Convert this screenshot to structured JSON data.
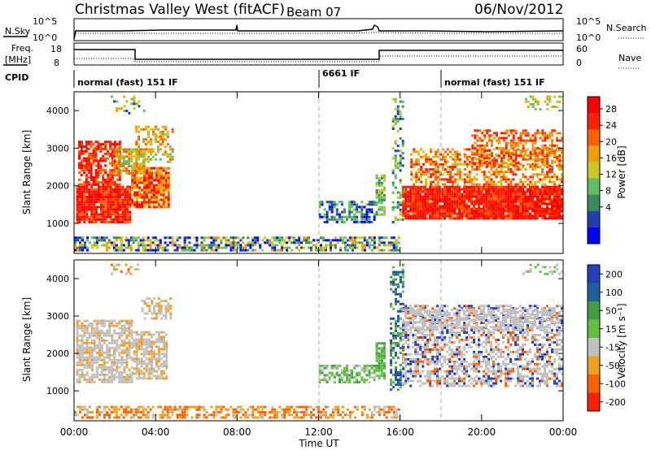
{
  "header": {
    "station": "Christmas Valley West (fitACF)",
    "beam": "Beam 07",
    "date": "06/Nov/2012"
  },
  "top_panels": {
    "nsky_label": "N.Sky",
    "nsearch_label": "N.Search",
    "noise_ticks": [
      "10^5",
      "10^0"
    ],
    "freq_label": "Freq.",
    "freq_unit": "[MHz]",
    "freq_ticks": [
      "18",
      "8"
    ],
    "nave_label": "Nave",
    "nave_ticks": [
      "60",
      "0"
    ],
    "cpid_label": "CPID",
    "cpid_segments": [
      "normal (fast) 151 IF",
      "6661 IF",
      "normal (fast) 151 IF"
    ]
  },
  "colors": {
    "power": [
      "#0000ff",
      "#2040b0",
      "#3a8a60",
      "#60c060",
      "#c8c820",
      "#f0a000",
      "#ff6000",
      "#ff2000",
      "#ff0000"
    ],
    "velocity": [
      "#2040c0",
      "#2060a0",
      "#40a040",
      "#60c040",
      "#c0c0c0",
      "#f0a020",
      "#ff6000",
      "#ff2000"
    ]
  },
  "chart_data": [
    {
      "type": "heatmap",
      "title": "",
      "xlabel": "Time UT",
      "ylabel": "Slant Range [km]",
      "x_ticks": [
        "00:00",
        "04:00",
        "08:00",
        "12:00",
        "16:00",
        "20:00",
        "00:00"
      ],
      "y_ticks": [
        "1000",
        "2000",
        "3000",
        "4000"
      ],
      "colorbar_label": "Power [dB]",
      "colorbar_ticks": [
        "28",
        "24",
        "20",
        "16",
        "12",
        "8",
        "4"
      ]
    },
    {
      "type": "heatmap",
      "title": "",
      "xlabel": "Time UT",
      "ylabel": "Slant Range [km]",
      "x_ticks": [
        "00:00",
        "04:00",
        "08:00",
        "12:00",
        "16:00",
        "20:00",
        "00:00"
      ],
      "y_ticks": [
        "1000",
        "2000",
        "3000",
        "4000"
      ],
      "colorbar_label": "Velocity [m s⁻¹]",
      "colorbar_ticks": [
        "200",
        "100",
        "50",
        "15",
        "-15",
        "-50",
        "-100",
        "-200"
      ]
    }
  ]
}
